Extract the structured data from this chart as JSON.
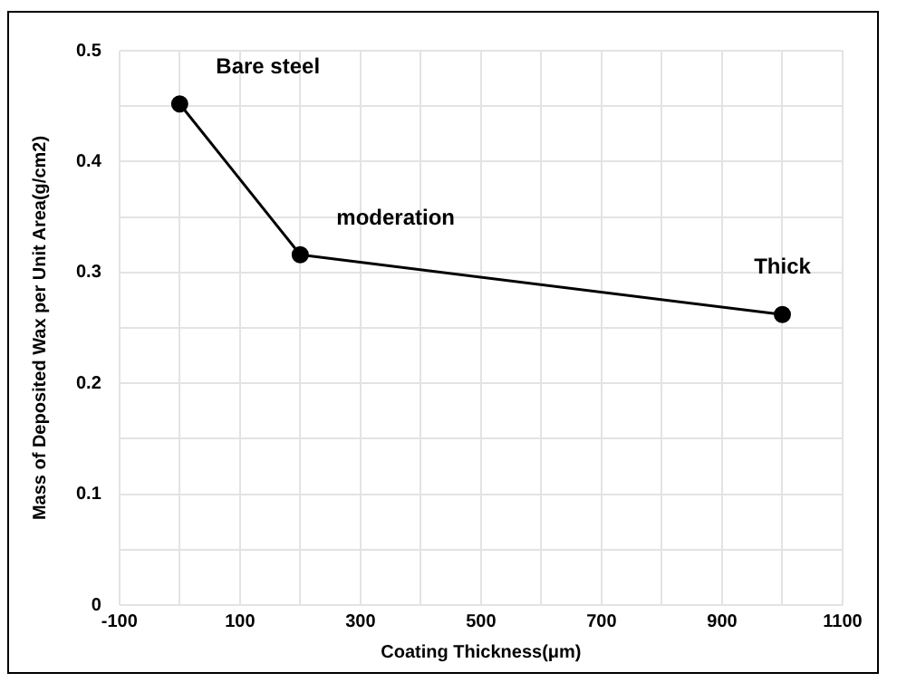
{
  "chart_data": {
    "type": "line",
    "xlabel": "Coating Thickness(μm)",
    "ylabel": "Mass of Deposited Wax per Unit Area(g/cm2)",
    "x": [
      0,
      200,
      1000
    ],
    "series": [
      {
        "color": "#000000",
        "values": [
          0.452,
          0.316,
          0.262
        ]
      }
    ],
    "xlim": [
      -100,
      1100
    ],
    "xticks": [
      -100,
      {
        "value": 0,
        "label": null
      },
      100,
      {
        "value": 200,
        "label": null
      },
      300,
      {
        "value": 400,
        "label": null
      },
      500,
      {
        "value": 600,
        "label": null
      },
      700,
      {
        "value": 800,
        "label": null
      },
      900,
      {
        "value": 1000,
        "label": null
      },
      1100
    ],
    "ylim": [
      0,
      0.5
    ],
    "yticks": [
      0,
      {
        "value": 0.05,
        "label": null
      },
      0.1,
      {
        "value": 0.15,
        "label": null
      },
      0.2,
      {
        "value": 0.25,
        "label": null
      },
      0.3,
      {
        "value": 0.35,
        "label": null
      },
      0.4,
      {
        "value": 0.45,
        "label": null
      },
      0.5
    ],
    "grid": true,
    "marker": "circle",
    "line_style": "solid",
    "legend": false,
    "annotations": [
      {
        "text": "Bare steel",
        "x": 0,
        "y": 0.452
      },
      {
        "text": "moderation",
        "x": 200,
        "y": 0.316
      },
      {
        "text": "Thick",
        "x": 1000,
        "y": 0.262
      }
    ]
  }
}
